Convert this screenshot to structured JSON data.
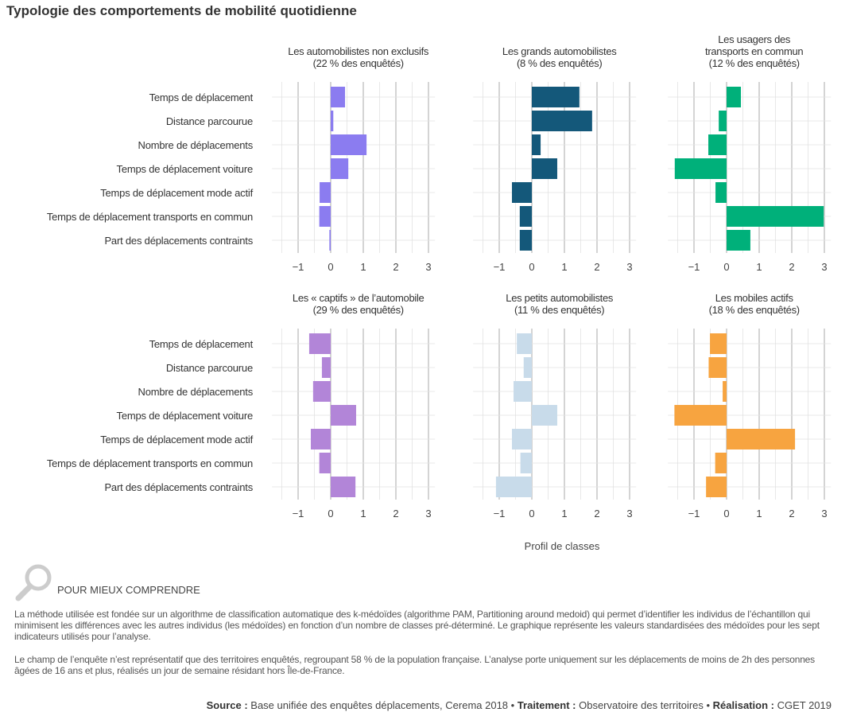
{
  "title": "Typologie des comportements de mobilité quotidienne",
  "chart_data": {
    "type": "bar",
    "orientation": "horizontal",
    "xlabel": "Profil de classes",
    "xlim": [
      -1.8,
      3.2
    ],
    "xticks": [
      -1,
      0,
      1,
      2,
      3
    ],
    "grid": true,
    "categories": [
      "Temps de déplacement",
      "Distance parcourue",
      "Nombre de déplacements",
      "Temps de déplacement voiture",
      "Temps de déplacement mode actif",
      "Temps de déplacement transports en commun",
      "Part des déplacements contraints"
    ],
    "panels": [
      {
        "title": [
          "Les automobilistes non exclusifs",
          "(22 % des enquêtés)"
        ],
        "color": "#8b7cf0",
        "values": [
          0.44,
          0.08,
          1.1,
          0.54,
          -0.34,
          -0.35,
          -0.04
        ]
      },
      {
        "title": [
          "Les grands automobilistes",
          "(8 % des enquêtés)"
        ],
        "color": "#14587a",
        "values": [
          1.46,
          1.85,
          0.27,
          0.78,
          -0.61,
          -0.37,
          -0.37
        ]
      },
      {
        "title": [
          "Les usagers des",
          "transports en commun",
          "(12 % des enquêtés)"
        ],
        "color": "#00b07a",
        "values": [
          0.44,
          -0.24,
          -0.56,
          -1.59,
          -0.34,
          2.98,
          0.73
        ]
      },
      {
        "title": [
          "Les « captifs » de l’automobile",
          "(29 % des enquêtés)"
        ],
        "color": "#b285d8",
        "values": [
          -0.66,
          -0.27,
          -0.54,
          0.78,
          -0.61,
          -0.35,
          0.76
        ]
      },
      {
        "title": [
          "Les petits automobilistes",
          "(11 % des enquêtés)"
        ],
        "color": "#c8dbea",
        "values": [
          -0.46,
          -0.25,
          -0.56,
          0.78,
          -0.61,
          -0.35,
          -1.1
        ]
      },
      {
        "title": [
          "Les mobiles actifs",
          "(18 % des enquêtés)"
        ],
        "color": "#f7a440",
        "values": [
          -0.51,
          -0.55,
          -0.12,
          -1.6,
          2.1,
          -0.35,
          -0.63
        ]
      }
    ]
  },
  "notes": {
    "heading": "POUR MIEUX COMPRENDRE",
    "p1": "La méthode utilisée est fondée sur un algorithme de classification automatique des k-médoïdes (algorithme PAM, Partitioning around medoid) qui permet d’identifier les individus de l’échantillon qui minimisent les différences avec les autres individus (les médoïdes) en fonction d’un nombre de classes pré-déterminé. Le graphique représente les valeurs standardisées des médoïdes pour les sept indicateurs utilisés pour l’analyse.",
    "p2": "Le champ de l’enquête n’est représentatif que des territoires enquêtés, regroupant 58 % de la population française. L’analyse porte uniquement sur les déplacements de moins de 2h des personnes âgées de 16 ans et plus, réalisés un jour de semaine résidant hors Île-de-France."
  },
  "source": {
    "source_label": "Source :",
    "source": " Base unifiée des enquêtes déplacements, Cerema 2018 • ",
    "treatment_label": "Traitement :",
    "treatment": " Observatoire des territoires • ",
    "credit_label": "Réalisation :",
    "credit": " CGET 2019"
  },
  "icons": {
    "notes": "magnifier-icon"
  }
}
